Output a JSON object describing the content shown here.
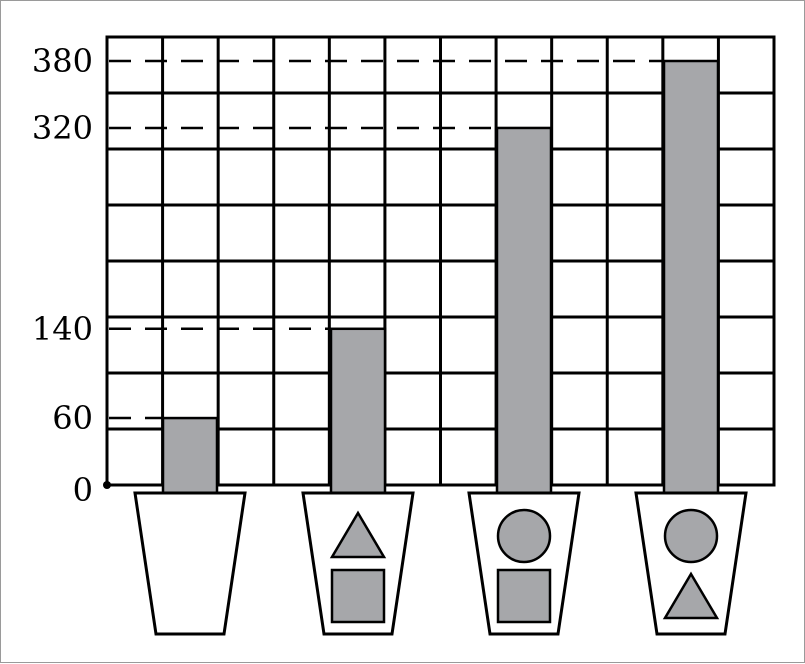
{
  "chart_data": {
    "type": "bar",
    "title": "",
    "xlabel": "",
    "ylabel": "",
    "categories": [
      "cup-empty",
      "cup-triangle-square",
      "cup-circle-square",
      "cup-circle-triangle"
    ],
    "values": [
      60,
      140,
      320,
      380
    ],
    "y_ticks": [
      0,
      60,
      140,
      320,
      380
    ],
    "y_tick_labels": [
      "0",
      "60",
      "140",
      "320",
      "380"
    ],
    "ylim": [
      0,
      400
    ],
    "grid": true,
    "cups": [
      {
        "top": null,
        "bottom": null
      },
      {
        "top": "triangle",
        "bottom": "square"
      },
      {
        "top": "circle",
        "bottom": "square"
      },
      {
        "top": "circle",
        "bottom": "triangle"
      }
    ]
  },
  "colors": {
    "bar": "#a6a7aa",
    "grid": "#000000",
    "shape_fill": "#a6a7aa"
  }
}
